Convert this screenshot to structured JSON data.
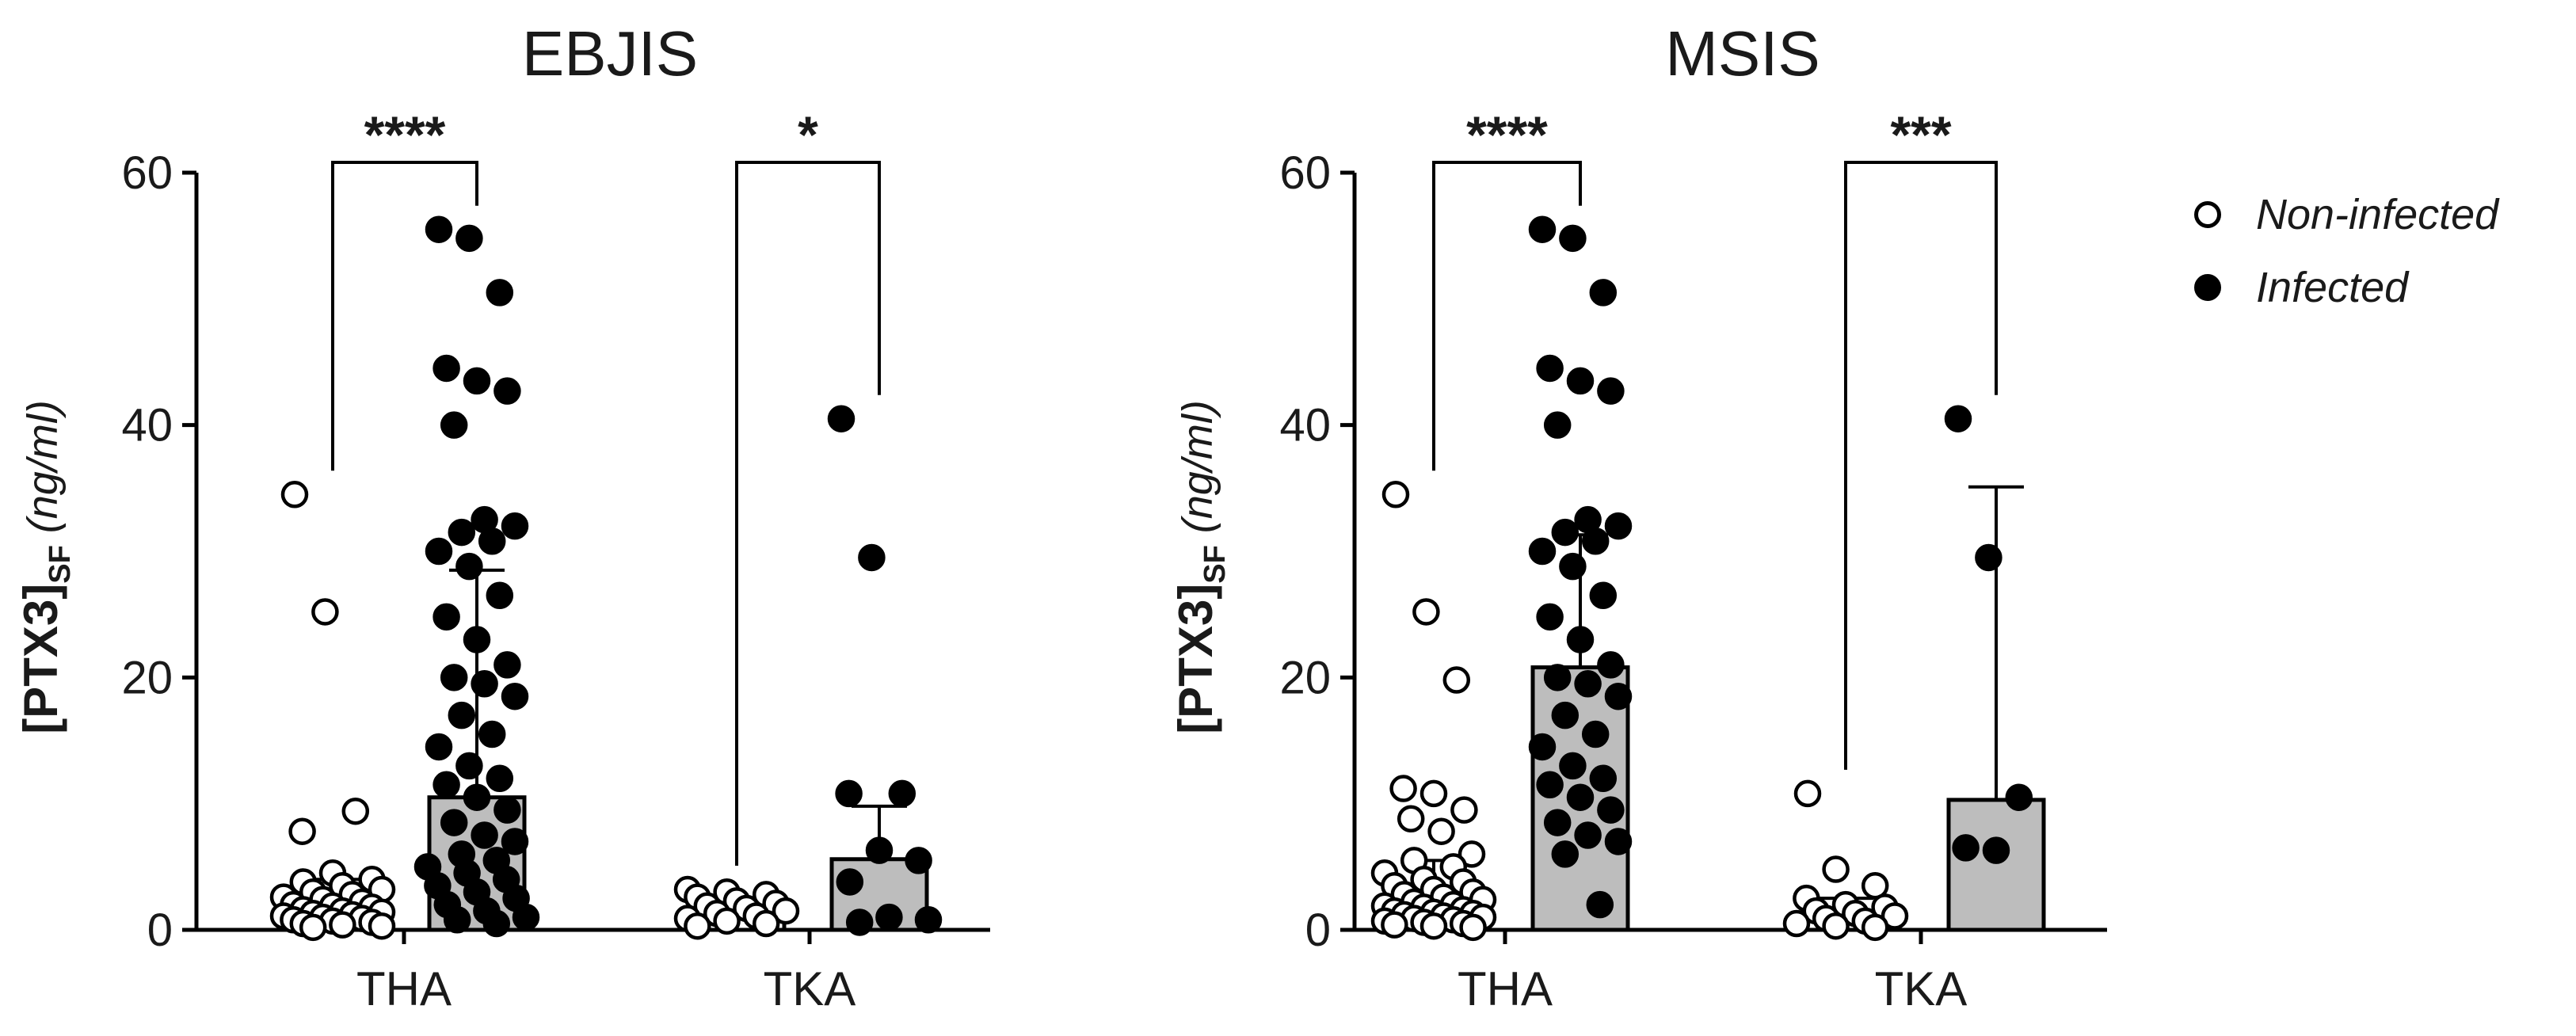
{
  "chart_data": [
    {
      "type": "bar",
      "title": "EBJIS",
      "ylabel_main": "[PTX3]",
      "ylabel_sub": "SF",
      "ylabel_unit": "(ng/ml)",
      "ylim": [
        0,
        60
      ],
      "yticks": [
        0,
        20,
        40,
        60
      ],
      "categories": [
        "THA",
        "TKA"
      ],
      "legend_position": "right",
      "groups": [
        {
          "category": "THA",
          "bars": [
            {
              "series": "Non-infected",
              "mean": 1.5,
              "sd": 2.5,
              "points": [
                34.5,
                25.2,
                9.4,
                7.8,
                4.5,
                4.0,
                3.8,
                3.5,
                3.2,
                3.0,
                2.8,
                2.6,
                2.4,
                2.2,
                2.0,
                1.9,
                1.8,
                1.6,
                1.5,
                1.4,
                1.3,
                1.2,
                1.1,
                1.0,
                0.9,
                0.8,
                0.7,
                0.6,
                0.5,
                0.4,
                0.3,
                0.2
              ]
            },
            {
              "series": "Infected",
              "mean": 10.5,
              "sd": 18.0,
              "points": [
                55.5,
                54.8,
                50.5,
                44.5,
                43.5,
                42.7,
                40.0,
                32.5,
                32.0,
                31.5,
                30.8,
                30.0,
                28.8,
                26.5,
                24.8,
                23.0,
                21.0,
                20.0,
                19.5,
                18.5,
                17.0,
                15.5,
                14.5,
                13.0,
                12.0,
                11.5,
                10.5,
                9.5,
                8.5,
                7.5,
                7.0,
                6.0,
                5.5,
                5.0,
                4.5,
                4.0,
                3.5,
                3.0,
                2.5,
                2.0,
                1.5,
                1.0,
                0.8,
                0.5
              ]
            }
          ],
          "significance": "****"
        },
        {
          "category": "TKA",
          "bars": [
            {
              "series": "Non-infected",
              "mean": 1.5,
              "sd": 1.0,
              "points": [
                3.2,
                3.0,
                2.8,
                2.6,
                2.3,
                2.1,
                1.9,
                1.7,
                1.5,
                1.3,
                1.1,
                0.9,
                0.7,
                0.5,
                0.3
              ]
            },
            {
              "series": "Infected",
              "mean": 5.6,
              "sd": 4.2,
              "points": [
                40.5,
                29.5,
                10.8,
                10.8,
                6.3,
                5.5,
                3.8,
                1.0,
                0.8,
                0.6
              ]
            }
          ],
          "significance": "*"
        }
      ]
    },
    {
      "type": "bar",
      "title": "MSIS",
      "ylabel_main": "[PTX3]",
      "ylabel_sub": "SF",
      "ylabel_unit": "(ng/ml)",
      "ylim": [
        0,
        60
      ],
      "yticks": [
        0,
        20,
        40,
        60
      ],
      "categories": [
        "THA",
        "TKA"
      ],
      "legend_position": "right",
      "groups": [
        {
          "category": "THA",
          "bars": [
            {
              "series": "Non-infected",
              "mean": 2.0,
              "sd": 3.5,
              "points": [
                34.5,
                25.2,
                19.8,
                11.2,
                10.8,
                9.5,
                8.8,
                7.8,
                6.0,
                5.5,
                5.0,
                4.5,
                4.0,
                3.8,
                3.5,
                3.2,
                3.0,
                2.8,
                2.6,
                2.4,
                2.2,
                2.0,
                1.9,
                1.8,
                1.6,
                1.5,
                1.4,
                1.3,
                1.2,
                1.1,
                1.0,
                0.9,
                0.8,
                0.7,
                0.6,
                0.5,
                0.4,
                0.3,
                0.2
              ]
            },
            {
              "series": "Infected",
              "mean": 20.8,
              "sd": 10.5,
              "points": [
                55.5,
                54.8,
                50.5,
                44.5,
                43.5,
                42.7,
                40.0,
                32.5,
                32.0,
                31.5,
                30.8,
                30.0,
                28.8,
                26.5,
                24.8,
                23.0,
                21.0,
                20.0,
                19.5,
                18.5,
                17.0,
                15.5,
                14.5,
                13.0,
                12.0,
                11.5,
                10.5,
                9.5,
                8.5,
                7.5,
                7.0,
                6.0,
                2.0
              ]
            }
          ],
          "significance": "****"
        },
        {
          "category": "TKA",
          "bars": [
            {
              "series": "Non-infected",
              "mean": 1.0,
              "sd": 1.5,
              "points": [
                10.8,
                4.8,
                3.5,
                2.5,
                2.0,
                1.8,
                1.5,
                1.3,
                1.1,
                0.9,
                0.7,
                0.5,
                0.3,
                0.2
              ]
            },
            {
              "series": "Infected",
              "mean": 10.3,
              "sd": 24.8,
              "points": [
                40.5,
                29.5,
                10.5,
                6.5,
                6.3
              ]
            }
          ],
          "significance": "***"
        }
      ]
    }
  ],
  "legend": {
    "items": [
      {
        "label": "Non-infected",
        "marker": "open-circle"
      },
      {
        "label": "Infected",
        "marker": "filled-circle"
      }
    ]
  },
  "colors": {
    "bar_fill": "#bdbdbd",
    "stroke": "#000000",
    "open_marker_fill": "#ffffff",
    "filled_marker_fill": "#000000"
  }
}
